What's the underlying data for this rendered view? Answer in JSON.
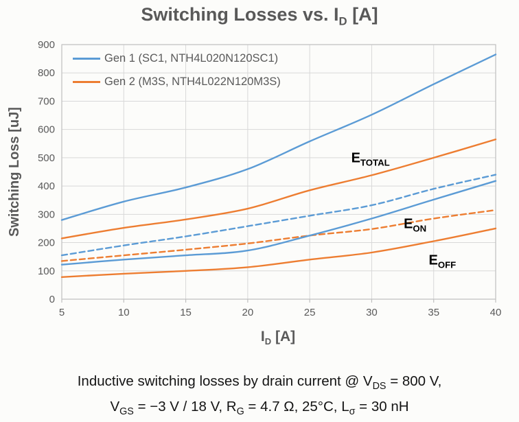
{
  "title_segments": [
    {
      "t": "Switching Losses vs. I"
    },
    {
      "s": "D"
    },
    {
      "t": " [A]"
    }
  ],
  "chart_data": {
    "type": "line",
    "title": "Switching Losses vs. ID [A]",
    "xlabel": "ID [A]",
    "xlabel_segments": [
      {
        "t": "I"
      },
      {
        "s": "D"
      },
      {
        "t": " [A]"
      }
    ],
    "ylabel": "Switching Loss [uJ]",
    "xlim": [
      5,
      40
    ],
    "ylim": [
      0,
      900
    ],
    "xticks": [
      5,
      10,
      15,
      20,
      25,
      30,
      35,
      40
    ],
    "ytick_step": 100,
    "grid": true,
    "legend_position": "top-left",
    "x": [
      5,
      10,
      15,
      20,
      25,
      30,
      35,
      40
    ],
    "series": [
      {
        "id": "gen1-etotal",
        "legend_label": "Gen 1 (SC1, NTH4L020N120SC1)",
        "device": "Gen 1",
        "curve": "E_TOTAL",
        "color": "#5B9BD5",
        "style": "solid",
        "values": [
          280,
          345,
          395,
          460,
          558,
          652,
          760,
          865
        ]
      },
      {
        "id": "gen2-etotal",
        "legend_label": "Gen 2 (M3S, NTH4L022N120M3S)",
        "device": "Gen 2",
        "curve": "E_TOTAL",
        "color": "#ED7D31",
        "style": "solid",
        "values": [
          215,
          252,
          282,
          320,
          385,
          438,
          500,
          565
        ]
      },
      {
        "id": "gen1-eon",
        "device": "Gen 1",
        "curve": "E_ON",
        "color": "#5B9BD5",
        "style": "dashed",
        "values": [
          155,
          190,
          222,
          258,
          295,
          332,
          390,
          440
        ]
      },
      {
        "id": "gen2-eon",
        "device": "Gen 2",
        "curve": "E_ON",
        "color": "#ED7D31",
        "style": "dashed",
        "values": [
          135,
          155,
          175,
          197,
          225,
          248,
          285,
          315
        ]
      },
      {
        "id": "gen1-eoff",
        "device": "Gen 1",
        "curve": "E_OFF",
        "color": "#5B9BD5",
        "style": "solid",
        "values": [
          122,
          140,
          155,
          172,
          225,
          285,
          352,
          418
        ]
      },
      {
        "id": "gen2-eoff",
        "device": "Gen 2",
        "curve": "E_OFF",
        "color": "#ED7D31",
        "style": "solid",
        "values": [
          78,
          90,
          100,
          113,
          140,
          165,
          205,
          250
        ]
      }
    ],
    "annotations": [
      {
        "main": "E",
        "sub": "TOTAL",
        "x": 29.9,
        "y": 494
      },
      {
        "main": "E",
        "sub": "ON",
        "x": 33.5,
        "y": 261
      },
      {
        "main": "E",
        "sub": "OFF",
        "x": 35.7,
        "y": 133
      }
    ],
    "axis_colors": {
      "tick_label": "#595959",
      "gridline": "#D8D8D8",
      "border": "#BFBFBF"
    }
  },
  "caption_plain": [
    "Inductive switching losses by drain current @ VDS = 800 V,",
    "VGS = −3 V / 18 V, RG = 4.7 Ω, 25°C, Lσ = 30 nH"
  ],
  "caption_lines": [
    [
      {
        "t": "Inductive switching losses by drain current @ V"
      },
      {
        "s": "DS"
      },
      {
        "t": " = 800 V,"
      }
    ],
    [
      {
        "t": "V"
      },
      {
        "s": "GS"
      },
      {
        "t": " = −3 V / 18 V, R"
      },
      {
        "s": "G"
      },
      {
        "t": " = 4.7 Ω, 25°C, L"
      },
      {
        "s": "σ"
      },
      {
        "t": " = 30 nH"
      }
    ]
  ]
}
